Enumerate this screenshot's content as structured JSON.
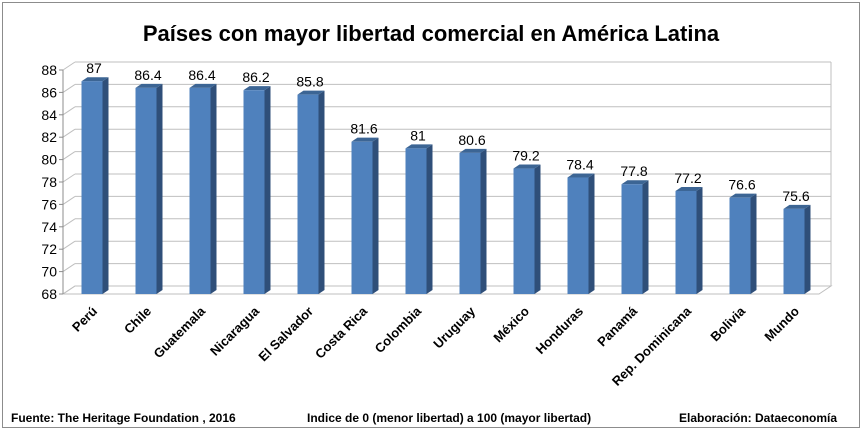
{
  "chart_data": {
    "type": "bar",
    "title": "Países con mayor libertad comercial en América Latina",
    "categories": [
      "Perú",
      "Chile",
      "Guatemala",
      "Nicaragua",
      "El Salvador",
      "Costa Rica",
      "Colombia",
      "Uruguay",
      "México",
      "Honduras",
      "Panamá",
      "Rep. Dominicana",
      "Bolivia",
      "Mundo"
    ],
    "values": [
      87,
      86.4,
      86.4,
      86.2,
      85.8,
      81.6,
      81,
      80.6,
      79.2,
      78.4,
      77.8,
      77.2,
      76.6,
      75.6
    ],
    "data_labels": [
      "87",
      "86.4",
      "86.4",
      "86.2",
      "85.8",
      "81.6",
      "81",
      "80.6",
      "79.2",
      "78.4",
      "77.8",
      "77.2",
      "76.6",
      "75.6"
    ],
    "ylim": [
      68,
      88
    ],
    "yticks": [
      68,
      70,
      72,
      74,
      76,
      78,
      80,
      82,
      84,
      86,
      88
    ],
    "grid": true,
    "legend": "none",
    "colors": {
      "bar_front": "#4f81bd",
      "bar_side": "#2f4f79",
      "bar_top": "#3c6594",
      "grid": "#bfbfbf"
    }
  },
  "footer": {
    "source": "Fuente: The Heritage Foundation , 2016",
    "note": "Indice de 0 (menor libertad) a 100  (mayor libertad)",
    "credit": "Elaboración: Dataeconomía"
  }
}
